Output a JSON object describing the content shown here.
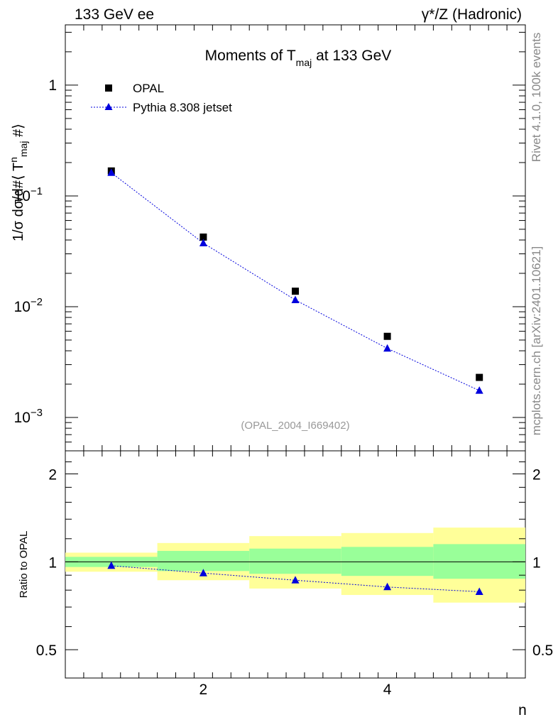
{
  "header": {
    "left": "133 GeV ee",
    "right": "γ*/Z (Hadronic)"
  },
  "side_labels": {
    "rivet": "Rivet 4.1.0,  100k events",
    "mcplots": "mcplots.cern.ch [arXiv:2401.10621]"
  },
  "chart_data": {
    "type": "scatter",
    "title_parts": {
      "pre": "Moments of T",
      "sub": "maj",
      "post": " at 133 GeV"
    },
    "watermark": "(OPAL_2004_I669402)",
    "xlabel": "n",
    "ylabel_parts": {
      "pre": "1/σ  dσ/d#⟨ T",
      "sup": "n",
      "sub": "maj",
      "post": " #⟩"
    },
    "ratio_ylabel": "Ratio to OPAL",
    "xlim": [
      0.5,
      5.5
    ],
    "ylim": [
      0.0005,
      3.5
    ],
    "ratio_ylim": [
      0.4,
      2.4
    ],
    "x_ticks": [
      {
        "v": 2,
        "label": "2"
      },
      {
        "v": 4,
        "label": "4"
      }
    ],
    "y_ticks": [
      {
        "v": 0.001,
        "base": "10",
        "exp": "−3"
      },
      {
        "v": 0.01,
        "base": "10",
        "exp": "−2"
      },
      {
        "v": 0.1,
        "base": "10",
        "exp": "−1"
      },
      {
        "v": 1,
        "base": "1",
        "exp": ""
      }
    ],
    "ratio_ticks": [
      {
        "v": 0.5,
        "label": "0.5"
      },
      {
        "v": 1,
        "label": "1"
      },
      {
        "v": 2,
        "label": "2"
      }
    ],
    "legend": {
      "opal": "OPAL",
      "pythia": "Pythia 8.308 jetset",
      "placement": "top-left"
    },
    "series": [
      {
        "name": "OPAL",
        "marker": "square",
        "color": "#000000",
        "x": [
          1,
          2,
          3,
          4,
          5
        ],
        "y": [
          0.168,
          0.0425,
          0.0138,
          0.0054,
          0.0023
        ]
      },
      {
        "name": "Pythia 8.308 jetset",
        "marker": "triangle",
        "color": "#0000dd",
        "x": [
          1,
          2,
          3,
          4,
          5
        ],
        "y": [
          0.162,
          0.0375,
          0.0115,
          0.0042,
          0.00175
        ]
      }
    ],
    "ratio": {
      "x": [
        1,
        2,
        3,
        4,
        5
      ],
      "pythia": [
        0.97,
        0.915,
        0.865,
        0.82,
        0.79
      ],
      "band_inner": [
        [
          0.96,
          1.04
        ],
        [
          0.93,
          1.09
        ],
        [
          0.91,
          1.11
        ],
        [
          0.895,
          1.125
        ],
        [
          0.875,
          1.15
        ]
      ],
      "band_outer": [
        [
          0.925,
          1.075
        ],
        [
          0.865,
          1.16
        ],
        [
          0.81,
          1.225
        ],
        [
          0.77,
          1.255
        ],
        [
          0.725,
          1.31
        ]
      ]
    },
    "colors": {
      "inner_band": "#99ff99",
      "outer_band": "#ffff99",
      "pythia": "#0000dd",
      "opal": "#000000"
    }
  }
}
